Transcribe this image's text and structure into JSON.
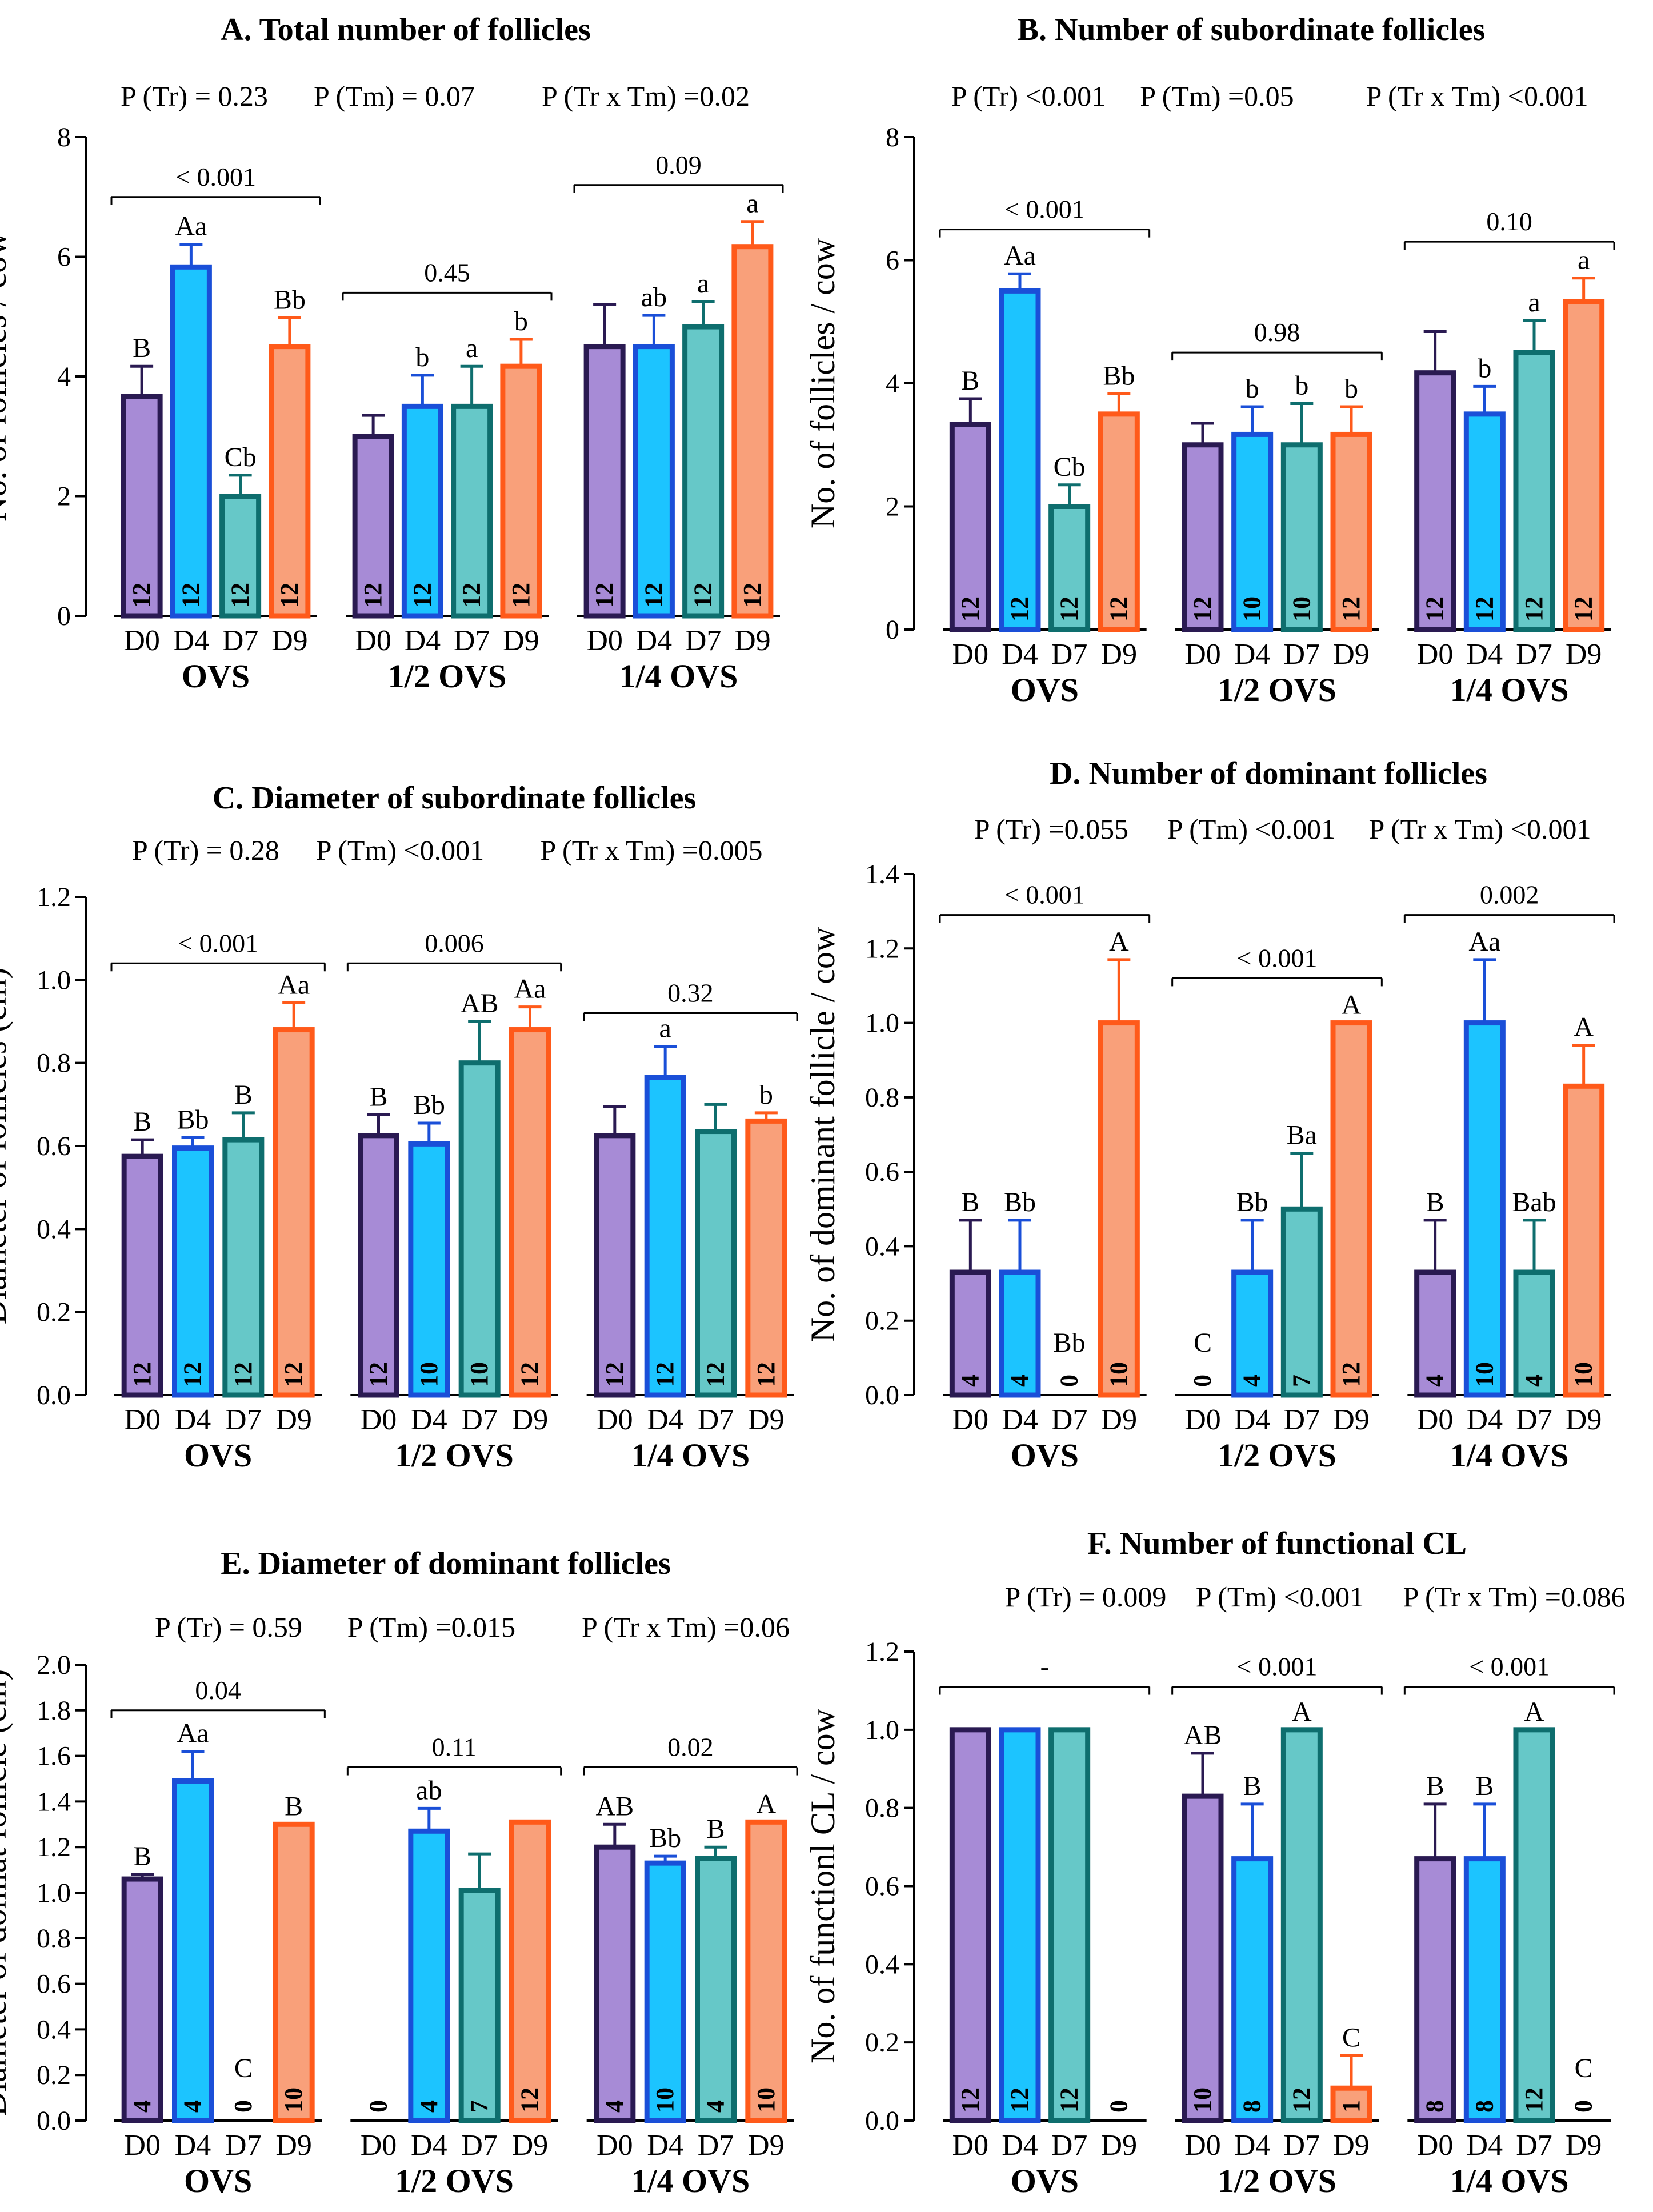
{
  "figure": {
    "categories": [
      "D0",
      "D4",
      "D7",
      "D9"
    ],
    "groups": [
      "OVS",
      "1/2 OVS",
      "1/4 OVS"
    ],
    "colors": {
      "D0": {
        "fill": "#a78bd6",
        "stroke": "#2a1a52"
      },
      "D4": {
        "fill": "#1cc4ff",
        "stroke": "#1a4fd8"
      },
      "D7": {
        "fill": "#66c8c8",
        "stroke": "#0e6e6e"
      },
      "D9": {
        "fill": "#f9a07a",
        "stroke": "#ff5a1a"
      }
    }
  },
  "chart_data": [
    {
      "type": "bar",
      "title": "A. Total number of follicles",
      "p_values": [
        "P (Tr) = 0.23",
        "P (Tm) = 0.07",
        "P (Tr x Tm) =0.02"
      ],
      "ylabel": "No. of follicles / cow",
      "ylim": [
        0,
        8
      ],
      "yticks": [
        "0",
        "2",
        "4",
        "6",
        "8"
      ],
      "categories": [
        "D0",
        "D4",
        "D7",
        "D9"
      ],
      "groups": [
        {
          "name": "OVS",
          "bracket": "< 0.001",
          "values": [
            3.67,
            5.83,
            2.0,
            4.5
          ],
          "errors": [
            0.5,
            0.38,
            0.35,
            0.48
          ],
          "letters": [
            "B",
            "Aa",
            "Cb",
            "Bb"
          ],
          "n": [
            "12",
            "12",
            "12",
            "12"
          ]
        },
        {
          "name": "1/2 OVS",
          "bracket": "0.45",
          "values": [
            3.0,
            3.5,
            3.5,
            4.17
          ],
          "errors": [
            0.35,
            0.52,
            0.67,
            0.45
          ],
          "letters": [
            "",
            "b",
            "a",
            "b"
          ],
          "n": [
            "12",
            "12",
            "12",
            "12"
          ]
        },
        {
          "name": "1/4 OVS",
          "bracket": "0.09",
          "values": [
            4.5,
            4.5,
            4.83,
            6.17
          ],
          "errors": [
            0.7,
            0.52,
            0.42,
            0.42
          ],
          "letters": [
            "",
            "ab",
            "a",
            "a"
          ],
          "n": [
            "12",
            "12",
            "12",
            "12"
          ]
        }
      ]
    },
    {
      "type": "bar",
      "title": "B. Number of subordinate follicles",
      "p_values": [
        "P (Tr) <0.001",
        "P (Tm) =0.05",
        "P (Tr x Tm) <0.001"
      ],
      "ylabel": "No. of follicles / cow",
      "ylim": [
        0,
        8
      ],
      "yticks": [
        "0",
        "2",
        "4",
        "6",
        "8"
      ],
      "categories": [
        "D0",
        "D4",
        "D7",
        "D9"
      ],
      "groups": [
        {
          "name": "OVS",
          "bracket": "< 0.001",
          "values": [
            3.33,
            5.5,
            2.0,
            3.5
          ],
          "errors": [
            0.42,
            0.28,
            0.35,
            0.33
          ],
          "letters": [
            "B",
            "Aa",
            "Cb",
            "Bb"
          ],
          "n": [
            "12",
            "12",
            "12",
            "12"
          ]
        },
        {
          "name": "1/2 OVS",
          "bracket": "0.98",
          "values": [
            3.0,
            3.17,
            3.0,
            3.17
          ],
          "errors": [
            0.35,
            0.45,
            0.67,
            0.45
          ],
          "letters": [
            "",
            "b",
            "b",
            "b"
          ],
          "n": [
            "12",
            "10",
            "10",
            "12"
          ]
        },
        {
          "name": "1/4 OVS",
          "bracket": "0.10",
          "values": [
            4.17,
            3.5,
            4.5,
            5.33
          ],
          "errors": [
            0.67,
            0.45,
            0.52,
            0.38
          ],
          "letters": [
            "",
            "b",
            "a",
            "a"
          ],
          "n": [
            "12",
            "12",
            "12",
            "12"
          ]
        }
      ]
    },
    {
      "type": "bar",
      "title": "C. Diameter of subordinate follicles",
      "p_values": [
        "P (Tr) = 0.28",
        "P (Tm) <0.001",
        "P (Tr x Tm) =0.005"
      ],
      "ylabel": "Diameter of follicles (cm)",
      "ylim": [
        0,
        1.2
      ],
      "yticks": [
        "0.0",
        "0.2",
        "0.4",
        "0.6",
        "0.8",
        "1.0",
        "1.2"
      ],
      "categories": [
        "D0",
        "D4",
        "D7",
        "D9"
      ],
      "groups": [
        {
          "name": "OVS",
          "bracket": "< 0.001",
          "values": [
            0.575,
            0.595,
            0.615,
            0.88
          ],
          "errors": [
            0.04,
            0.025,
            0.065,
            0.065
          ],
          "letters": [
            "B",
            "Bb",
            "B",
            "Aa"
          ],
          "n": [
            "12",
            "12",
            "12",
            "12"
          ]
        },
        {
          "name": "1/2 OVS",
          "bracket": "0.006",
          "values": [
            0.625,
            0.605,
            0.8,
            0.88
          ],
          "errors": [
            0.05,
            0.05,
            0.1,
            0.055
          ],
          "letters": [
            "B",
            "Bb",
            "AB",
            "Aa"
          ],
          "n": [
            "12",
            "10",
            "10",
            "12"
          ]
        },
        {
          "name": "1/4 OVS",
          "bracket": "0.32",
          "values": [
            0.625,
            0.765,
            0.635,
            0.66
          ],
          "errors": [
            0.07,
            0.075,
            0.065,
            0.02
          ],
          "letters": [
            "",
            "a",
            "",
            "b"
          ],
          "n": [
            "12",
            "12",
            "12",
            "12"
          ]
        }
      ]
    },
    {
      "type": "bar",
      "title": "D. Number of dominant follicles",
      "p_values": [
        "P (Tr) =0.055",
        "P (Tm) <0.001",
        "P (Tr x Tm) <0.001"
      ],
      "ylabel": "No. of dominant follicle / cow",
      "ylim": [
        0,
        1.4
      ],
      "yticks": [
        "0.0",
        "0.2",
        "0.4",
        "0.6",
        "0.8",
        "1.0",
        "1.2",
        "1.4"
      ],
      "categories": [
        "D0",
        "D4",
        "D7",
        "D9"
      ],
      "groups": [
        {
          "name": "OVS",
          "bracket": "< 0.001",
          "values": [
            0.33,
            0.33,
            0.0,
            1.0
          ],
          "errors": [
            0.14,
            0.14,
            0.0,
            0.17
          ],
          "letters": [
            "B",
            "Bb",
            "Bb",
            "A"
          ],
          "n": [
            "4",
            "4",
            "0",
            "10"
          ]
        },
        {
          "name": "1/2 OVS",
          "bracket": "< 0.001",
          "values": [
            0.0,
            0.33,
            0.5,
            1.0
          ],
          "errors": [
            0.0,
            0.14,
            0.15,
            0.0
          ],
          "letters": [
            "C",
            "Bb",
            "Ba",
            "A"
          ],
          "n": [
            "0",
            "4",
            "7",
            "12"
          ]
        },
        {
          "name": "1/4 OVS",
          "bracket": "0.002",
          "values": [
            0.33,
            1.0,
            0.33,
            0.83
          ],
          "errors": [
            0.14,
            0.17,
            0.14,
            0.11
          ],
          "letters": [
            "B",
            "Aa",
            "Bab",
            "A"
          ],
          "n": [
            "4",
            "10",
            "4",
            "10"
          ]
        }
      ]
    },
    {
      "type": "bar",
      "title": "E. Diameter of dominant follicles",
      "p_values": [
        "P (Tr) = 0.59",
        "P (Tm) =0.015",
        "P (Tr x Tm) =0.06"
      ],
      "ylabel": "Diameter of domiat follicle (cm)",
      "ylim": [
        0,
        2.0
      ],
      "yticks": [
        "0.0",
        "0.2",
        "0.4",
        "0.6",
        "0.8",
        "1.0",
        "1.2",
        "1.4",
        "1.6",
        "1.8",
        "2.0"
      ],
      "categories": [
        "D0",
        "D4",
        "D7",
        "D9"
      ],
      "groups": [
        {
          "name": "OVS",
          "bracket": "0.04",
          "values": [
            1.06,
            1.49,
            0.0,
            1.3
          ],
          "errors": [
            0.02,
            0.13,
            0.0,
            0.0
          ],
          "letters": [
            "B",
            "Aa",
            "C",
            "B"
          ],
          "n": [
            "4",
            "4",
            "0",
            "10"
          ]
        },
        {
          "name": "1/2 OVS",
          "bracket": "0.11",
          "values": [
            0.0,
            1.27,
            1.01,
            1.31
          ],
          "errors": [
            0.0,
            0.1,
            0.16,
            0.0
          ],
          "letters": [
            "",
            "ab",
            "",
            ""
          ],
          "n": [
            "0",
            "4",
            "7",
            "12"
          ]
        },
        {
          "name": "1/4 OVS",
          "bracket": "0.02",
          "values": [
            1.2,
            1.13,
            1.15,
            1.31
          ],
          "errors": [
            0.1,
            0.03,
            0.05,
            0.0
          ],
          "letters": [
            "AB",
            "Bb",
            "B",
            "A"
          ],
          "n": [
            "4",
            "10",
            "4",
            "10"
          ]
        }
      ]
    },
    {
      "type": "bar",
      "title": "F. Number of functional CL",
      "p_values": [
        "P (Tr) = 0.009",
        "P (Tm) <0.001",
        "P (Tr x Tm) =0.086"
      ],
      "ylabel": "No. of functionl CL / cow",
      "ylim": [
        0,
        1.2
      ],
      "yticks": [
        "0.0",
        "0.2",
        "0.4",
        "0.6",
        "0.8",
        "1.0",
        "1.2"
      ],
      "categories": [
        "D0",
        "D4",
        "D7",
        "D9"
      ],
      "groups": [
        {
          "name": "OVS",
          "bracket": "-",
          "values": [
            1.0,
            1.0,
            1.0,
            0.0
          ],
          "errors": [
            0.0,
            0.0,
            0.0,
            0.0
          ],
          "letters": [
            "",
            "",
            "",
            ""
          ],
          "n": [
            "12",
            "12",
            "12",
            "0"
          ]
        },
        {
          "name": "1/2 OVS",
          "bracket": "< 0.001",
          "values": [
            0.83,
            0.67,
            1.0,
            0.083
          ],
          "errors": [
            0.11,
            0.14,
            0.0,
            0.083
          ],
          "letters": [
            "AB",
            "B",
            "A",
            "C"
          ],
          "n": [
            "10",
            "8",
            "12",
            "1"
          ]
        },
        {
          "name": "1/4 OVS",
          "bracket": "< 0.001",
          "values": [
            0.67,
            0.67,
            1.0,
            0.0
          ],
          "errors": [
            0.14,
            0.14,
            0.0,
            0.0
          ],
          "letters": [
            "B",
            "B",
            "A",
            "C"
          ],
          "n": [
            "8",
            "8",
            "12",
            "0"
          ]
        }
      ]
    }
  ]
}
